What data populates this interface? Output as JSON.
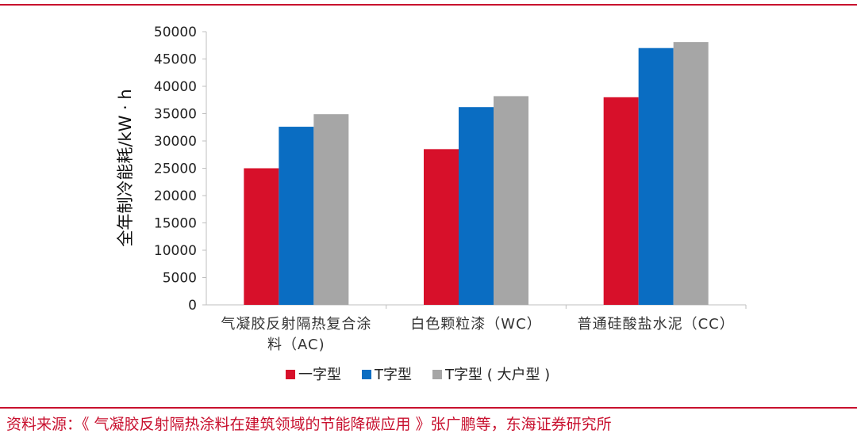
{
  "chart_data": {
    "type": "bar",
    "ylabel": "全年制冷能耗/kW · h",
    "ylim": [
      0,
      50000
    ],
    "yticks": [
      0,
      5000,
      10000,
      15000,
      20000,
      25000,
      30000,
      35000,
      40000,
      45000,
      50000
    ],
    "categories": [
      [
        "气凝胶反射隔热复合涂",
        "料（AC)"
      ],
      [
        "白色颗粒漆（WC）"
      ],
      [
        "普通硅酸盐水泥（CC）"
      ]
    ],
    "series": [
      {
        "name": "一字型",
        "color": "#d7102a",
        "values": [
          25000,
          28500,
          38000
        ]
      },
      {
        "name": "T字型",
        "color": "#0a6dc2",
        "values": [
          32600,
          36200,
          47000
        ]
      },
      {
        "name": "T字型 ( 大户型 )",
        "color": "#a6a6a6",
        "values": [
          34900,
          38200,
          48100
        ]
      }
    ],
    "grid": false,
    "legend": "bottom"
  },
  "source": "资料来源：《 气凝胶反射隔热涂料在建筑领域的节能降碳应用 》张广鹏等，东海证券研究所"
}
